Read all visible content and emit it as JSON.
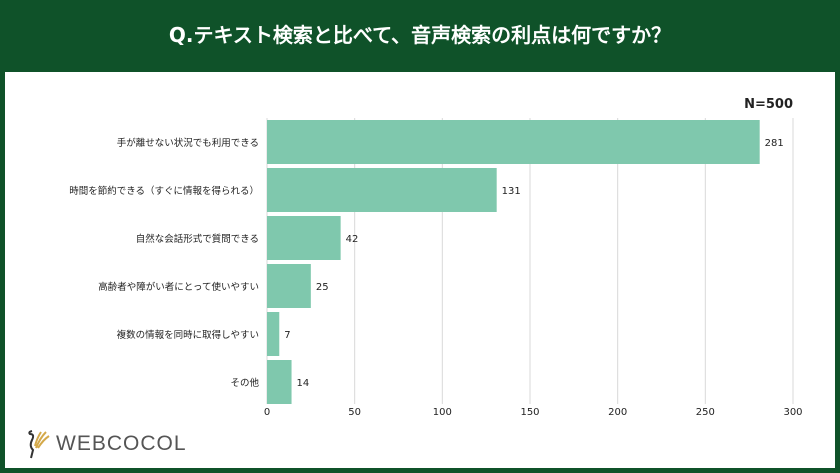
{
  "header": {
    "title": "Q.テキスト検索と比べて、音声検索の利点は何ですか？"
  },
  "logo": {
    "text": "WEBCOCOL"
  },
  "colors": {
    "header_bg": "#0f5229",
    "bar": "#7fc8ad",
    "grid": "#d9d9d9"
  },
  "chart_data": {
    "type": "bar",
    "orientation": "horizontal",
    "title": "Q.テキスト検索と比べて、音声検索の利点は何ですか？",
    "annotation": "N=500",
    "categories": [
      "手が離せない状況でも利用できる",
      "時間を節約できる（すぐに情報を得られる）",
      "自然な会話形式で質問できる",
      "高齢者や障がい者にとって使いやすい",
      "複数の情報を同時に取得しやすい",
      "その他"
    ],
    "values": [
      281,
      131,
      42,
      25,
      7,
      14
    ],
    "value_labels": [
      "281",
      "131",
      "42",
      "25",
      "7",
      "14"
    ],
    "xlim": [
      0,
      300
    ],
    "xticks": [
      0,
      50,
      100,
      150,
      200,
      250,
      300
    ],
    "xtick_labels": [
      "0",
      "50",
      "100",
      "150",
      "200",
      "250",
      "300"
    ],
    "grid": true,
    "xlabel": "",
    "ylabel": ""
  }
}
